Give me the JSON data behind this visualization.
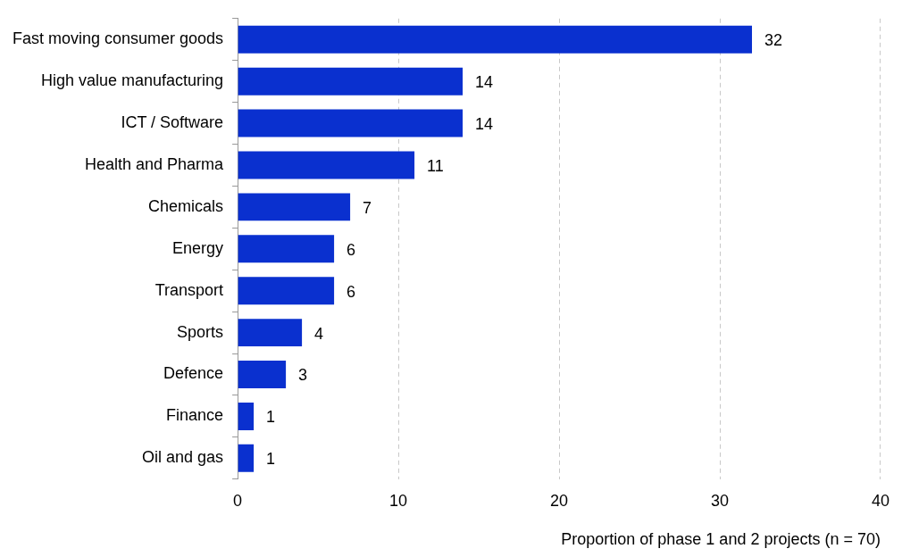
{
  "chart_data": {
    "type": "bar",
    "orientation": "horizontal",
    "xlabel": "Proportion of phase 1 and 2 projects (n = 70)",
    "categories": [
      "Fast moving consumer goods",
      "High value manufacturing",
      "ICT / Software",
      "Health and Pharma",
      "Chemicals",
      "Energy",
      "Transport",
      "Sports",
      "Defence",
      "Finance",
      "Oil and gas"
    ],
    "values": [
      32,
      14,
      14,
      11,
      7,
      6,
      6,
      4,
      3,
      1,
      1
    ],
    "color": "#0a30cf",
    "xlim": [
      0,
      40
    ],
    "xticks": [
      0,
      10,
      20,
      30,
      40
    ],
    "grid": "x",
    "data_labels": true,
    "legend": false
  }
}
